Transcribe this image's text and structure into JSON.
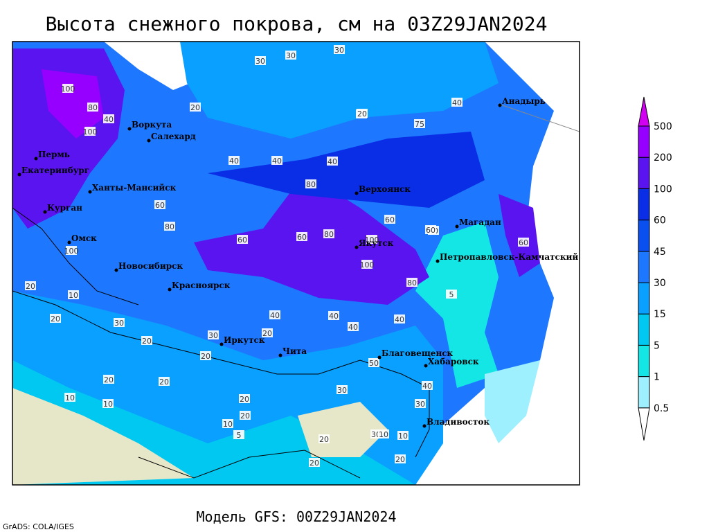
{
  "title": "Высота снежного покрова, см на 03Z29JAN2024",
  "subtitle": "Модель GFS: 00Z29JAN2024",
  "credit": "GrADS: COLA/IGES",
  "cities": [
    "Воркута",
    "Салехард",
    "Пермь",
    "Екатеринбург",
    "Ханты-Мансийск",
    "Курган",
    "Омск",
    "Новосибирск",
    "Красноярск",
    "Иркутск",
    "Чита",
    "Благовещенск",
    "Хабаровск",
    "Владивосток",
    "Верхоянск",
    "Якутск",
    "Магадан",
    "Петропавловск-Камчатский",
    "Анадырь"
  ],
  "contour_labels": [
    30,
    30,
    30,
    100,
    80,
    100,
    40,
    20,
    20,
    40,
    40,
    40,
    80,
    60,
    60,
    40,
    80,
    100,
    60,
    60,
    80,
    100,
    20,
    10,
    20,
    30,
    20,
    20,
    30,
    20,
    20,
    10,
    10,
    20,
    20,
    10,
    5,
    20,
    30,
    20,
    30,
    10,
    10,
    20,
    40,
    20,
    30,
    50,
    40,
    40,
    60,
    75,
    20,
    40,
    60,
    80,
    100,
    40,
    40,
    5
  ],
  "legend": {
    "levels": [
      0.5,
      1,
      5,
      15,
      30,
      45,
      60,
      100,
      200,
      500
    ],
    "colors": [
      "#ffffff",
      "#9ff0ff",
      "#14e6e6",
      "#00c8f0",
      "#0aa0ff",
      "#1e78ff",
      "#0a50f0",
      "#0a2ee6",
      "#5a14f0",
      "#9600ff",
      "#d200f0"
    ]
  }
}
